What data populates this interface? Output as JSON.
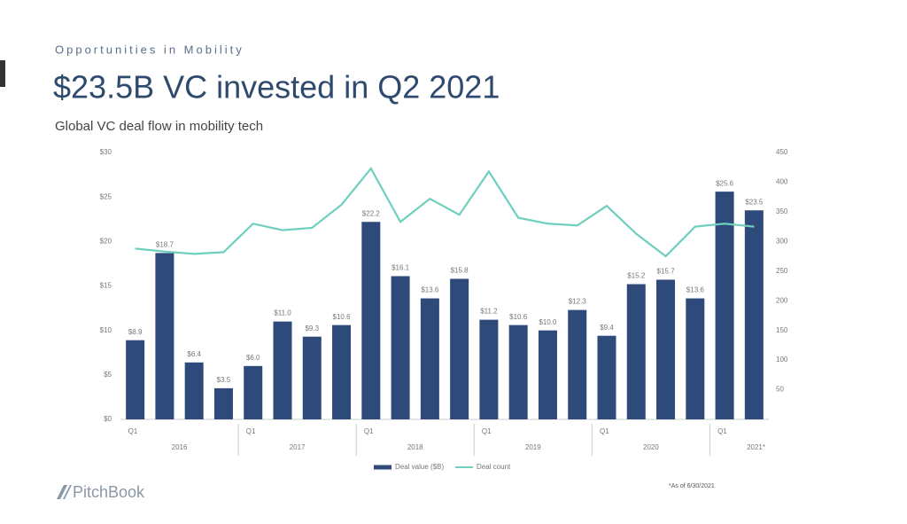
{
  "kicker": "Opportunities in Mobility",
  "footnote": "*As of 6/30/2021",
  "brand": "PitchBook",
  "chart_data": {
    "type": "bar",
    "title": "$23.5B VC invested in Q2 2021",
    "subtitle": "Global VC deal flow in mobility tech",
    "categories": [
      "Q1",
      null,
      null,
      null,
      "Q1",
      null,
      null,
      null,
      "Q1",
      null,
      null,
      null,
      "Q1",
      null,
      null,
      null,
      "Q1",
      null,
      null,
      null,
      "Q1",
      null
    ],
    "x_groups": [
      "2016",
      "2017",
      "2018",
      "2019",
      "2020",
      "2021*"
    ],
    "series": [
      {
        "name": "Deal value ($B)",
        "color": "#2e4a7a",
        "values": [
          8.9,
          18.7,
          6.4,
          3.5,
          6.0,
          11.0,
          9.3,
          10.6,
          22.2,
          16.1,
          13.6,
          15.8,
          11.2,
          10.6,
          10.0,
          12.3,
          9.4,
          15.2,
          15.7,
          13.6,
          25.6,
          23.5
        ],
        "value_labels": [
          "$8.9",
          "$18.7",
          "$6.4",
          "$3.5",
          "$6.0",
          "$11.0",
          "$9.3",
          "$10.6",
          "$22.2",
          "$16.1",
          "$13.6",
          "$15.8",
          "$11.2",
          "$10.6",
          "$10.0",
          "$12.3",
          "$9.4",
          "$15.2",
          "$15.7",
          "$13.6",
          "$25.6",
          "$23.5"
        ]
      },
      {
        "name": "Deal count",
        "color": "#6fcfbf",
        "type": "line",
        "axis": "y2",
        "values": [
          288,
          283,
          279,
          282,
          330,
          319,
          323,
          362,
          423,
          333,
          372,
          345,
          418,
          340,
          330,
          327,
          360,
          313,
          275,
          325,
          330,
          325
        ]
      }
    ],
    "ylim": [
      0,
      30
    ],
    "yticks": [
      {
        "value": 0,
        "label": "$0"
      },
      {
        "value": 5,
        "label": "$5"
      },
      {
        "value": 10,
        "label": "$10"
      },
      {
        "value": 15,
        "label": "$15"
      },
      {
        "value": 20,
        "label": "$20"
      },
      {
        "value": 25,
        "label": "$25"
      },
      {
        "value": 30,
        "label": "$30"
      }
    ],
    "y2lim": [
      0,
      450
    ],
    "y2ticks": [
      50,
      100,
      150,
      200,
      250,
      300,
      350,
      400,
      450
    ]
  }
}
